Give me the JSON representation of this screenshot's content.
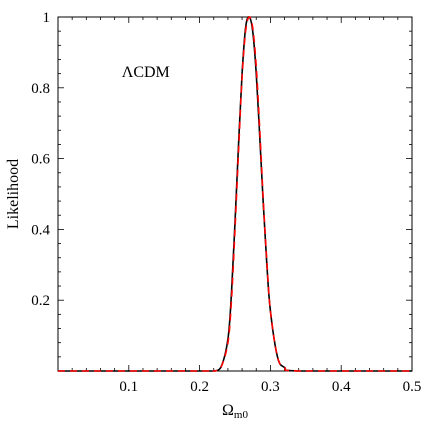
{
  "chart_data": {
    "type": "line",
    "title": "",
    "xlabel": "Ω",
    "xlabel_sub": "m0",
    "ylabel": "Likelihood",
    "xlim": [
      0.0,
      0.5
    ],
    "ylim": [
      0.0,
      1.0
    ],
    "x_ticks": [
      0.1,
      0.2,
      0.3,
      0.4,
      0.5
    ],
    "x_tick_labels": [
      "0.1",
      "0.2",
      "0.3",
      "0.4",
      "0.5"
    ],
    "y_ticks": [
      0.2,
      0.4,
      0.6,
      0.8,
      1.0
    ],
    "y_tick_labels": [
      "0.2",
      "0.4",
      "0.6",
      "0.8",
      "1"
    ],
    "grid": false,
    "legend": "none",
    "annotations": [
      {
        "text": "ΛCDM",
        "x": 0.09,
        "y": 0.83
      }
    ],
    "series": [
      {
        "style": "solid",
        "color": "#000000",
        "x": [
          0.0,
          0.2,
          0.22,
          0.23,
          0.24,
          0.245,
          0.25,
          0.255,
          0.26,
          0.265,
          0.27,
          0.275,
          0.28,
          0.285,
          0.29,
          0.295,
          0.3,
          0.31,
          0.32,
          0.34,
          0.5
        ],
        "y": [
          0.0,
          0.0,
          0.0,
          0.01,
          0.09,
          0.22,
          0.42,
          0.64,
          0.84,
          0.97,
          1.0,
          0.96,
          0.84,
          0.66,
          0.47,
          0.3,
          0.17,
          0.04,
          0.01,
          0.0,
          0.0
        ]
      },
      {
        "style": "dashed",
        "color": "#ff0000",
        "x": [
          0.0,
          0.2,
          0.22,
          0.23,
          0.24,
          0.245,
          0.25,
          0.255,
          0.26,
          0.265,
          0.27,
          0.275,
          0.28,
          0.285,
          0.29,
          0.295,
          0.3,
          0.31,
          0.32,
          0.34,
          0.5
        ],
        "y": [
          0.0,
          0.0,
          0.0,
          0.01,
          0.08,
          0.2,
          0.4,
          0.62,
          0.83,
          0.96,
          1.0,
          0.97,
          0.86,
          0.68,
          0.48,
          0.31,
          0.17,
          0.04,
          0.01,
          0.0,
          0.0
        ]
      }
    ]
  }
}
